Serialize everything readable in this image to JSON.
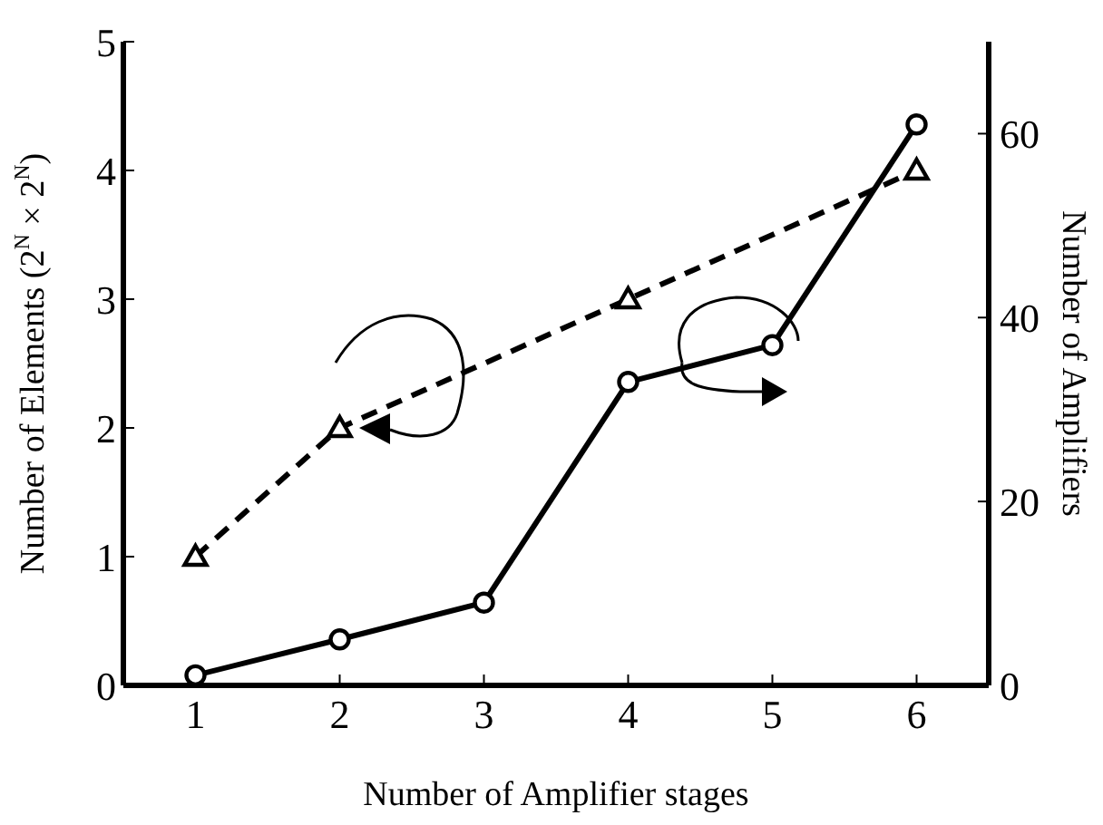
{
  "chart_data": {
    "type": "line",
    "xlabel": "Number of Amplifier stages",
    "ylabel": "Number of Elements (2$^{N}$ × 2$^{N}$)",
    "y2label": "Number of Amplifiers",
    "xlim": [
      0.5,
      6.5
    ],
    "xticks": [
      1,
      2,
      3,
      4,
      5,
      6
    ],
    "ylim": [
      0,
      5
    ],
    "yticks": [
      0,
      1,
      2,
      3,
      4,
      5
    ],
    "y2lim": [
      0,
      70
    ],
    "y2ticks": [
      0,
      20,
      40,
      60
    ],
    "series": [
      {
        "x": [
          1,
          2,
          4,
          6
        ],
        "values": [
          1,
          2,
          3,
          4
        ],
        "color": "#000000",
        "marker": "triangle",
        "line_style": "dashed"
      },
      {
        "x": [
          1,
          2,
          3,
          4,
          5,
          6
        ],
        "values": [
          1.1,
          5,
          9,
          33,
          37,
          61
        ],
        "color": "#000000",
        "marker": "circle",
        "line_style": "solid",
        "axis": "y2"
      }
    ]
  }
}
